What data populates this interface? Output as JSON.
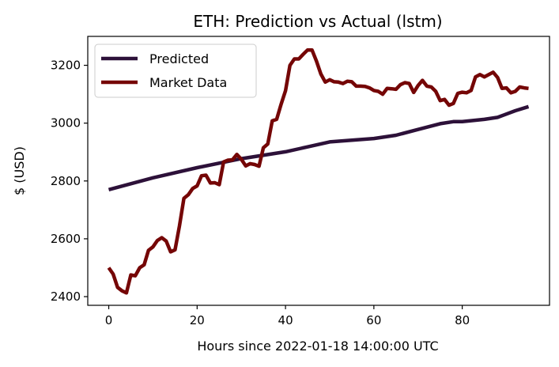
{
  "chart_data": {
    "type": "line",
    "title": "ETH: Prediction vs Actual (lstm)",
    "xlabel": "Hours since 2022-01-18 14:00:00 UTC",
    "ylabel": "$ (USD)",
    "xlim": [
      -4.75,
      99.75
    ],
    "ylim": [
      2370,
      3300
    ],
    "xticks": [
      0,
      20,
      40,
      60,
      80
    ],
    "yticks": [
      2400,
      2600,
      2800,
      3000,
      3200
    ],
    "grid": false,
    "legend_position": "top-left",
    "series": [
      {
        "name": "Predicted",
        "color": "#2d1139",
        "x": [
          0,
          10,
          20,
          30,
          40,
          45,
          50,
          55,
          60,
          65,
          70,
          75,
          78,
          80,
          85,
          88,
          92,
          95
        ],
        "y": [
          2770,
          2811,
          2846,
          2877,
          2901,
          2918,
          2935,
          2941,
          2947,
          2958,
          2978,
          2998,
          3005,
          3005,
          3013,
          3020,
          3043,
          3057
        ]
      },
      {
        "name": "Market Data",
        "color": "#750606",
        "x": [
          0,
          1,
          2,
          3,
          4,
          5,
          6,
          7,
          8,
          9,
          10,
          11,
          12,
          13,
          14,
          15,
          16,
          17,
          18,
          19,
          20,
          21,
          22,
          23,
          24,
          25,
          26,
          27,
          28,
          29,
          30,
          31,
          32,
          33,
          34,
          35,
          36,
          37,
          38,
          39,
          40,
          41,
          42,
          43,
          44,
          45,
          46,
          47,
          48,
          49,
          50,
          51,
          52,
          53,
          54,
          55,
          56,
          57,
          58,
          59,
          60,
          61,
          62,
          63,
          64,
          65,
          66,
          67,
          68,
          69,
          70,
          71,
          72,
          73,
          74,
          75,
          76,
          77,
          78,
          79,
          80,
          81,
          82,
          83,
          84,
          85,
          86,
          87,
          88,
          89,
          90,
          91,
          92,
          93,
          94,
          95
        ],
        "y": [
          2500,
          2478,
          2432,
          2420,
          2413,
          2475,
          2472,
          2500,
          2510,
          2560,
          2572,
          2594,
          2604,
          2592,
          2555,
          2562,
          2645,
          2740,
          2752,
          2774,
          2783,
          2818,
          2820,
          2793,
          2794,
          2787,
          2866,
          2872,
          2873,
          2892,
          2875,
          2852,
          2860,
          2857,
          2851,
          2915,
          2928,
          3008,
          3013,
          3065,
          3112,
          3200,
          3222,
          3222,
          3238,
          3253,
          3253,
          3215,
          3170,
          3142,
          3150,
          3143,
          3142,
          3137,
          3145,
          3143,
          3128,
          3128,
          3127,
          3122,
          3113,
          3110,
          3100,
          3120,
          3119,
          3117,
          3133,
          3140,
          3137,
          3106,
          3130,
          3148,
          3128,
          3125,
          3110,
          3078,
          3082,
          3062,
          3068,
          3103,
          3107,
          3105,
          3113,
          3160,
          3168,
          3160,
          3168,
          3176,
          3158,
          3120,
          3122,
          3105,
          3110,
          3125,
          3122,
          3120
        ]
      }
    ]
  }
}
